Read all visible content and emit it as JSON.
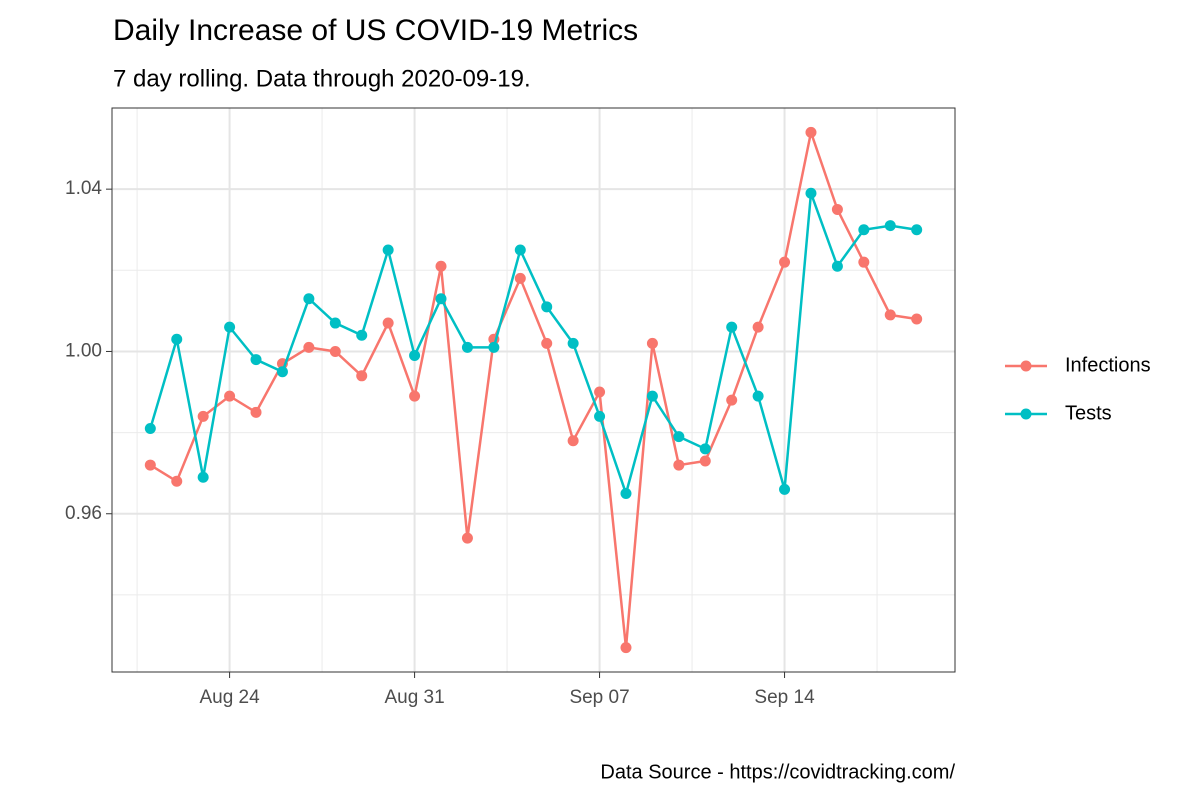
{
  "chart_data": {
    "type": "line",
    "title": "Daily Increase of US COVID-19 Metrics",
    "subtitle": "7 day rolling. Data through 2020-09-19.",
    "caption": "Data Source - https://covidtracking.com/",
    "x": [
      "Aug 21",
      "Aug 22",
      "Aug 23",
      "Aug 24",
      "Aug 25",
      "Aug 26",
      "Aug 27",
      "Aug 28",
      "Aug 29",
      "Aug 30",
      "Aug 31",
      "Sep 01",
      "Sep 02",
      "Sep 03",
      "Sep 04",
      "Sep 05",
      "Sep 06",
      "Sep 07",
      "Sep 08",
      "Sep 09",
      "Sep 10",
      "Sep 11",
      "Sep 12",
      "Sep 13",
      "Sep 14",
      "Sep 15",
      "Sep 16",
      "Sep 17",
      "Sep 18",
      "Sep 19"
    ],
    "xticks": [
      "Aug 24",
      "Aug 31",
      "Sep 07",
      "Sep 14"
    ],
    "series": [
      {
        "name": "Infections",
        "color": "#f8766d",
        "values": [
          0.972,
          0.968,
          0.984,
          0.989,
          0.985,
          0.997,
          1.001,
          1.0,
          0.994,
          1.007,
          0.989,
          1.021,
          0.954,
          1.003,
          1.018,
          1.002,
          0.978,
          0.99,
          0.927,
          1.002,
          0.972,
          0.973,
          0.988,
          1.006,
          1.022,
          1.054,
          1.035,
          1.022,
          1.009,
          1.008
        ]
      },
      {
        "name": "Tests",
        "color": "#00bfc4",
        "values": [
          0.981,
          1.003,
          0.969,
          1.006,
          0.998,
          0.995,
          1.013,
          1.007,
          1.004,
          1.025,
          0.999,
          1.013,
          1.001,
          1.001,
          1.025,
          1.011,
          1.002,
          0.984,
          0.965,
          0.989,
          0.979,
          0.976,
          1.006,
          0.989,
          0.966,
          1.039,
          1.021,
          1.03,
          1.031,
          1.03
        ]
      }
    ],
    "ylim": [
      0.921,
      1.06
    ],
    "yticks": [
      0.96,
      {
        "value": 1,
        "label": "1.00"
      },
      1.04
    ],
    "grid": true,
    "legend": "right"
  }
}
